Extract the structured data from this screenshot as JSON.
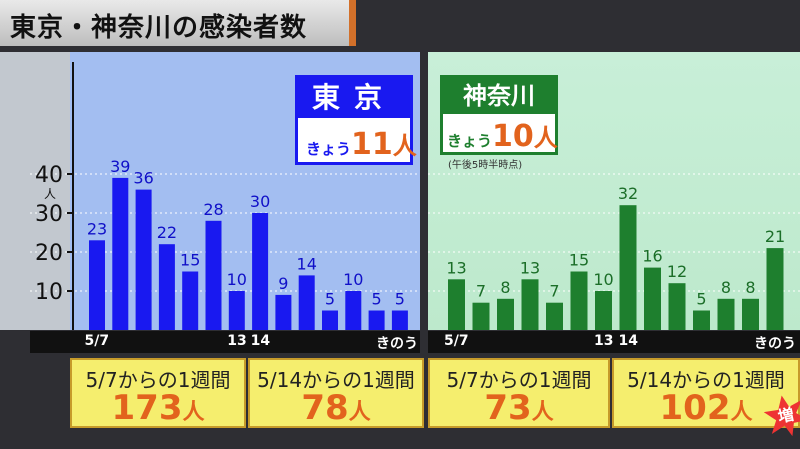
{
  "title": "東京・神奈川の感染者数",
  "colors": {
    "tokyo_bar": "#1919f0",
    "kanagawa_bar": "#1e7f2e",
    "accent": "#e2631d"
  },
  "tokyo_header": {
    "name": "東京",
    "today_label": "きょう",
    "today_value": "11",
    "unit": "人"
  },
  "kanagawa_header": {
    "name": "神奈川",
    "today_label": "きょう",
    "today_value": "10",
    "unit": "人",
    "note": "(午後5時半時点)"
  },
  "summary": [
    {
      "caption": "5/7からの1週間",
      "value": "173",
      "unit": "人"
    },
    {
      "caption": "5/14からの1週間",
      "value": "78",
      "unit": "人"
    },
    {
      "caption": "5/7からの1週間",
      "value": "73",
      "unit": "人"
    },
    {
      "caption": "5/14からの1週間",
      "value": "102",
      "unit": "人"
    }
  ],
  "burst_text": "増",
  "chart_data": [
    {
      "type": "bar",
      "title": "東京",
      "values": [
        23,
        39,
        36,
        22,
        15,
        28,
        10,
        30,
        9,
        14,
        5,
        10,
        5,
        5
      ],
      "x_tick_labels": [
        {
          "index": 0,
          "text": "5/7"
        },
        {
          "index": 6,
          "text": "13"
        },
        {
          "index": 7,
          "text": "14"
        },
        {
          "index": 13,
          "text": "きのう"
        }
      ],
      "y_ticks": [
        {
          "value": 10,
          "text": "10"
        },
        {
          "value": 20,
          "text": "20"
        },
        {
          "value": 30,
          "text": "30"
        },
        {
          "value": 40,
          "text": "40"
        }
      ],
      "y_unit": "人",
      "ylim": [
        0,
        45
      ],
      "grid": true
    },
    {
      "type": "bar",
      "title": "神奈川",
      "values": [
        13,
        7,
        8,
        13,
        7,
        15,
        10,
        32,
        16,
        12,
        5,
        8,
        8,
        21
      ],
      "x_tick_labels": [
        {
          "index": 0,
          "text": "5/7"
        },
        {
          "index": 6,
          "text": "13"
        },
        {
          "index": 7,
          "text": "14"
        },
        {
          "index": 13,
          "text": "きのう"
        }
      ],
      "ylim": [
        0,
        45
      ],
      "grid": true
    }
  ]
}
